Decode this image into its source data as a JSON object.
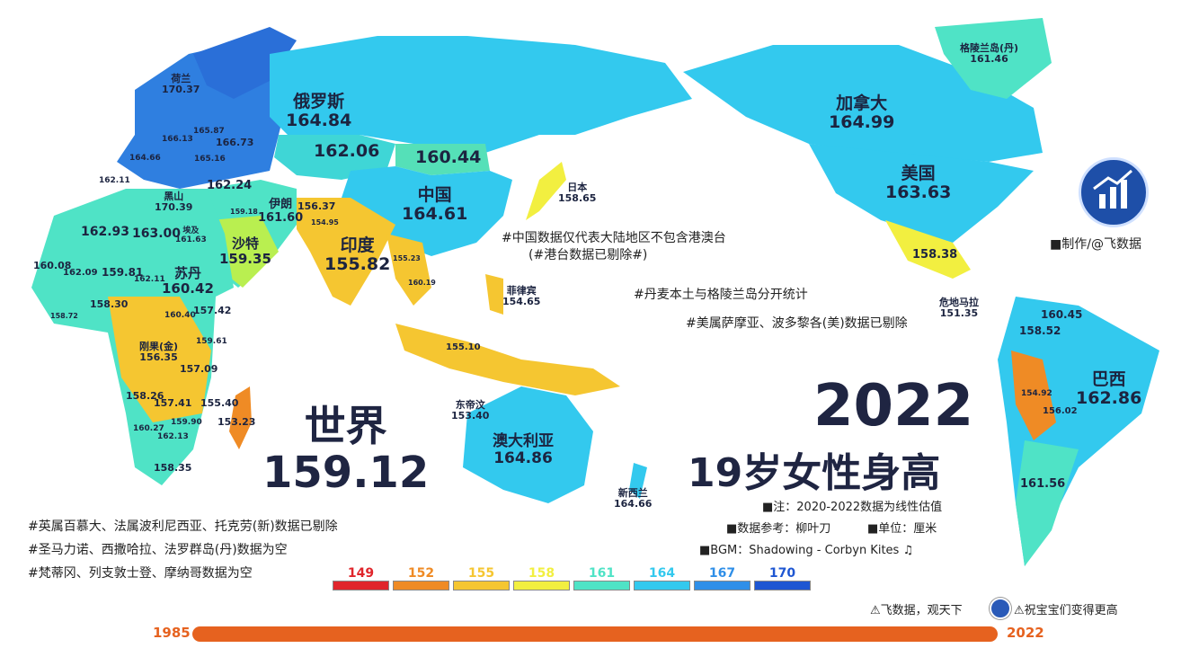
{
  "countries": {
    "russia": {
      "name": "俄罗斯",
      "value": "164.84"
    },
    "kazakhstan": {
      "value": "162.06"
    },
    "mongolia": {
      "value": "160.44"
    },
    "china": {
      "name": "中国",
      "value": "164.61"
    },
    "canada": {
      "name": "加拿大",
      "value": "164.99"
    },
    "usa": {
      "name": "美国",
      "value": "163.63"
    },
    "greenland": {
      "name": "格陵兰岛(丹)",
      "value": "161.46"
    },
    "japan": {
      "name": "日本",
      "value": "158.65"
    },
    "netherlands": {
      "name": "荷兰",
      "value": "170.37"
    },
    "montenegro": {
      "name": "黑山",
      "value": "170.39"
    },
    "india": {
      "name": "印度",
      "value": "155.82"
    },
    "iran": {
      "name": "伊朗",
      "value": "161.60"
    },
    "saudi": {
      "name": "沙特",
      "value": "159.35"
    },
    "egypt": {
      "name": "埃及",
      "value": "161.63"
    },
    "sudan": {
      "name": "苏丹",
      "value": "160.42"
    },
    "drc": {
      "name": "刚果(金)",
      "value": "156.35"
    },
    "philippines": {
      "name": "菲律宾",
      "value": "154.65"
    },
    "timor": {
      "name": "东帝汶",
      "value": "153.40"
    },
    "australia": {
      "name": "澳大利亚",
      "value": "164.86"
    },
    "newzealand": {
      "name": "新西兰",
      "value": "164.66"
    },
    "guatemala": {
      "name": "危地马拉",
      "value": "151.35"
    },
    "mexico": {
      "value": "158.38"
    },
    "brazil": {
      "name": "巴西",
      "value": "162.86"
    },
    "argentina": {
      "value": "161.56"
    },
    "madagascar": {
      "value": "153.23"
    }
  },
  "small_values": {
    "europe_a": "166.13",
    "europe_b": "165.87",
    "europe_c": "166.73",
    "europe_d": "164.66",
    "europe_e": "165.16",
    "spain": "162.11",
    "turkey": "162.24",
    "algeria": "162.93",
    "libya": "163.00",
    "mauritania": "160.08",
    "mali": "162.09",
    "niger": "159.81",
    "chad": "162.11",
    "nigeria": "158.30",
    "senegal": "158.72",
    "ethiopia": "157.42",
    "southsudan": "160.40",
    "kenya": "159.61",
    "tanzania": "157.09",
    "angola": "158.26",
    "zambia": "157.41",
    "mozambique": "155.40",
    "zimbabwe": "159.90",
    "namibia": "160.27",
    "botswana": "162.13",
    "southafrica": "158.35",
    "iraq": "159.18",
    "afghanistan": "156.37",
    "pakistan": "154.95",
    "myanmar": "155.23",
    "thailand": "160.19",
    "indonesia": "155.10",
    "colombia": "160.45",
    "peru": "158.52",
    "bolivia": "154.92",
    "paraguay": "156.02"
  },
  "notes": {
    "china_note": "#中国数据仅代表大陆地区不包含港澳台",
    "china_note2": "(#港台数据已剔除#)",
    "denmark_note": "#丹麦本土与格陵兰岛分开统计",
    "us_note": "#美属萨摩亚、波多黎各(美)数据已剔除",
    "made_by": "■制作/@飞数据",
    "excluded1": "#英属百慕大、法属波利尼西亚、托克劳(新)数据已剔除",
    "excluded2": "#圣马力诺、西撒哈拉、法罗群岛(丹)数据为空",
    "excluded3": "#梵蒂冈、列支敦士登、摩纳哥数据为空",
    "estimate": "■注：2020-2022数据为线性估值",
    "source": "■数据参考：柳叶刀",
    "unit": "■单位：厘米",
    "bgm": "■BGM：Shadowing - Corbyn Kites ♫",
    "slogan1": "⚠飞数据，观天下",
    "slogan2": "⚠祝宝宝们变得更高"
  },
  "world": {
    "label": "世界",
    "value": "159.12"
  },
  "title": {
    "year": "2022",
    "subtitle": "19岁女性身高"
  },
  "legend": [
    {
      "value": "149",
      "color": "#e0252b"
    },
    {
      "value": "152",
      "color": "#ef8b25"
    },
    {
      "value": "155",
      "color": "#f5c631"
    },
    {
      "value": "158",
      "color": "#f2ef40"
    },
    {
      "value": "161",
      "color": "#4fe3c6"
    },
    {
      "value": "164",
      "color": "#33c9ee"
    },
    {
      "value": "167",
      "color": "#2f8fe8"
    },
    {
      "value": "170",
      "color": "#1e56d2"
    }
  ],
  "timeline": {
    "start": "1985",
    "end": "2022",
    "progress": 1.0
  }
}
